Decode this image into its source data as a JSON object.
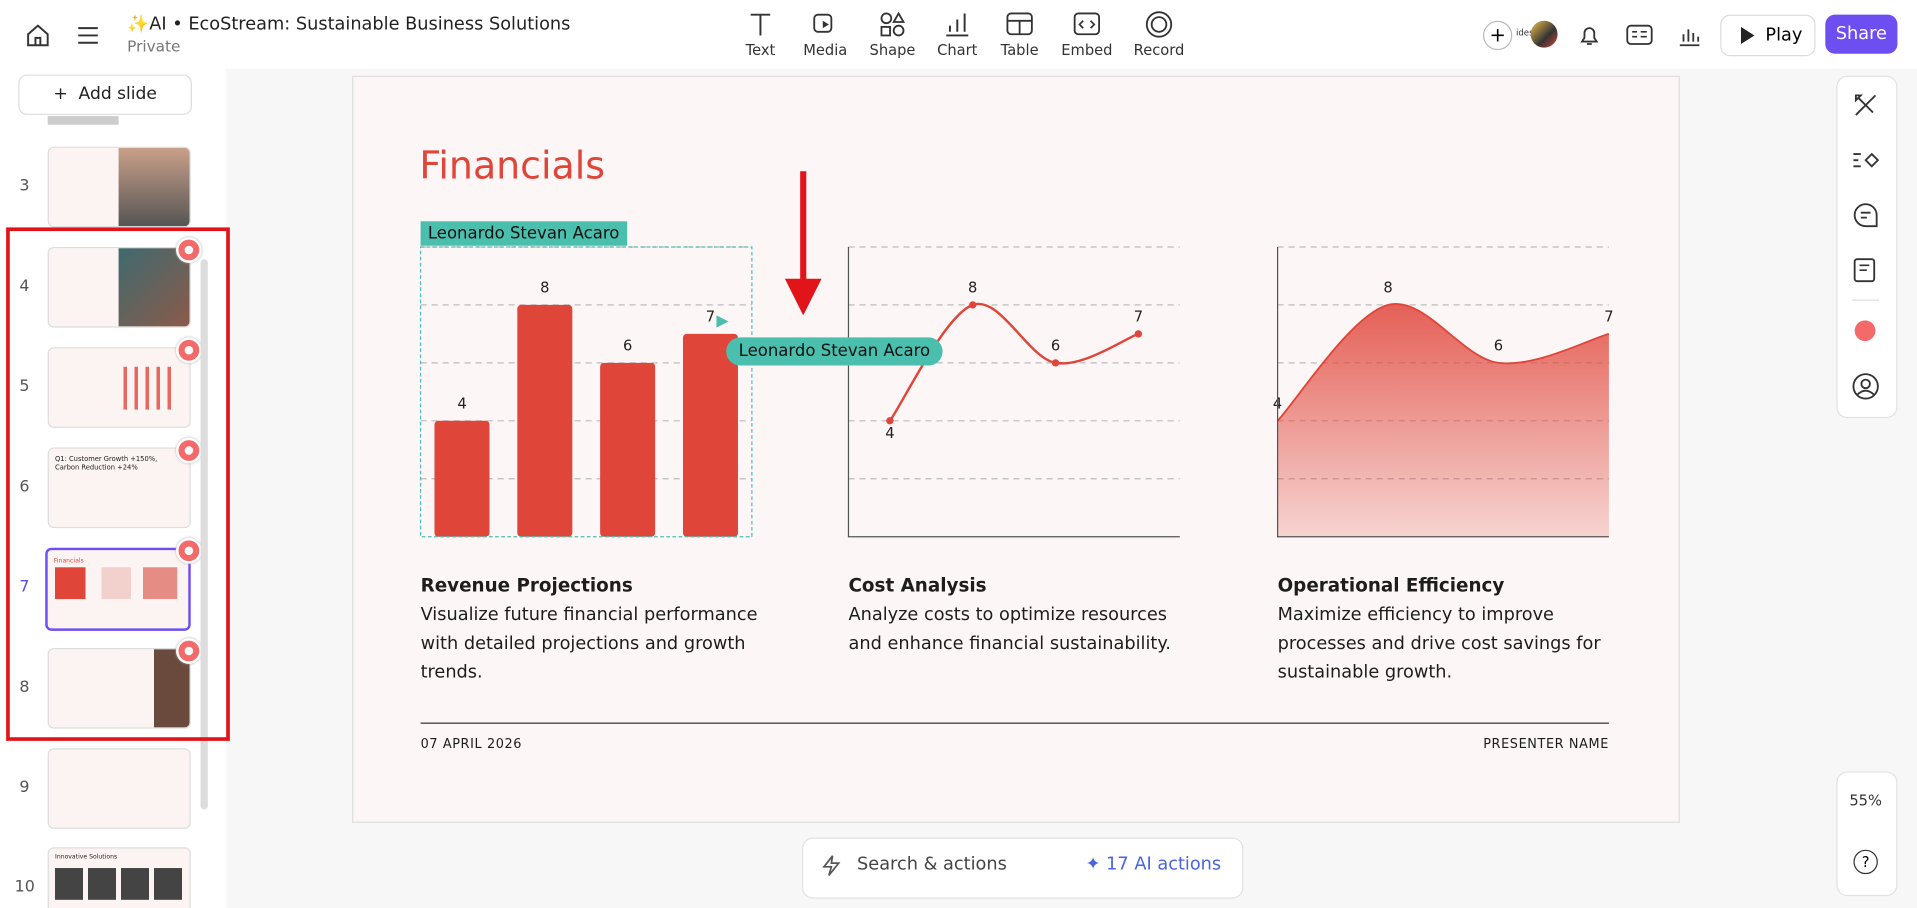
{
  "app": {
    "title": "AI • EcoStream: Sustainable Business Solutions",
    "visibility": "Private",
    "toolbar": [
      "Text",
      "Media",
      "Shape",
      "Chart",
      "Table",
      "Embed",
      "Record"
    ],
    "avatar_label": "ides",
    "play": "Play",
    "share": "Share",
    "zoom": "55%"
  },
  "sidebar": {
    "add_slide": "Add slide",
    "slides": [
      {
        "number": "3"
      },
      {
        "number": "4"
      },
      {
        "number": "5"
      },
      {
        "number": "6",
        "title": "Q1: Customer Growth +150%, Carbon Reduction +24%"
      },
      {
        "number": "7",
        "title": "Financials"
      },
      {
        "number": "8"
      },
      {
        "number": "9"
      },
      {
        "number": "10",
        "title": "Innovative Solutions"
      }
    ]
  },
  "slide": {
    "title": "Financials",
    "collaborator": "Leonardo Stevan Acaro",
    "charts": [
      {
        "type": "bar",
        "values": [
          4,
          8,
          6,
          7
        ],
        "ylim": [
          0,
          10
        ],
        "yticks": [
          0,
          2,
          4,
          6,
          8,
          10
        ],
        "color": "#e0453a",
        "heading": "Revenue Projections",
        "description": "Visualize future financial performance with detailed projections and growth trends."
      },
      {
        "type": "line",
        "values": [
          4,
          8,
          6,
          7
        ],
        "ylim": [
          0,
          10
        ],
        "yticks": [
          0,
          2,
          4,
          6,
          8,
          10
        ],
        "color": "#e0453a",
        "heading": "Cost Analysis",
        "description": "Analyze costs to optimize resources and enhance financial sustainability."
      },
      {
        "type": "area",
        "values": [
          4,
          8,
          6,
          7
        ],
        "ylim": [
          0,
          10
        ],
        "yticks": [
          0,
          2,
          4,
          6,
          8,
          10
        ],
        "color": "#e0453a",
        "heading": "Operational Efficiency",
        "description": "Maximize efficiency to improve processes and drive cost savings for sustainable growth."
      }
    ],
    "date": "07 APRIL 2026",
    "presenter": "PRESENTER NAME"
  },
  "search": {
    "placeholder": "Search & actions",
    "ai_actions": "17 AI actions"
  }
}
